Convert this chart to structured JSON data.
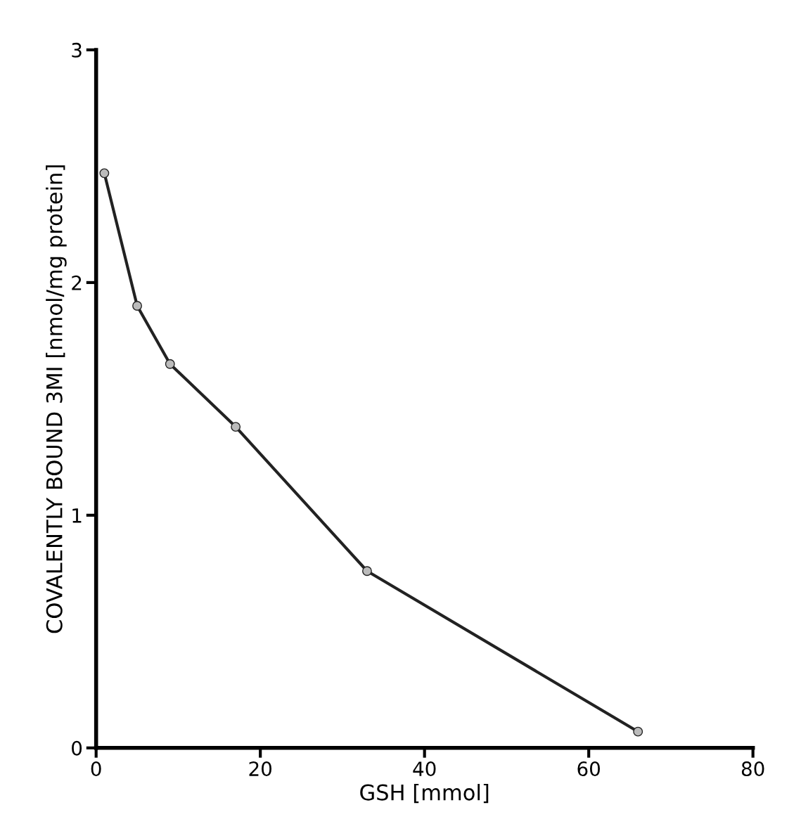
{
  "chart_data": {
    "type": "line",
    "xlabel": "GSH [mmol]",
    "ylabel": "COVALENTLY BOUND 3MI [nmol/mg protein]",
    "x": [
      1,
      5,
      9,
      17,
      33,
      66
    ],
    "series": [
      {
        "color": "#222222",
        "values": [
          2.47,
          1.9,
          1.65,
          1.38,
          0.76,
          0.07
        ]
      }
    ],
    "xlim": [
      0,
      80
    ],
    "xticks": [
      0,
      20,
      40,
      60,
      80
    ],
    "ylim": [
      0,
      3
    ],
    "yticks": [
      0,
      1,
      2,
      3
    ],
    "marker": "circle",
    "line_style": "solid",
    "grid": false,
    "legend": false
  }
}
